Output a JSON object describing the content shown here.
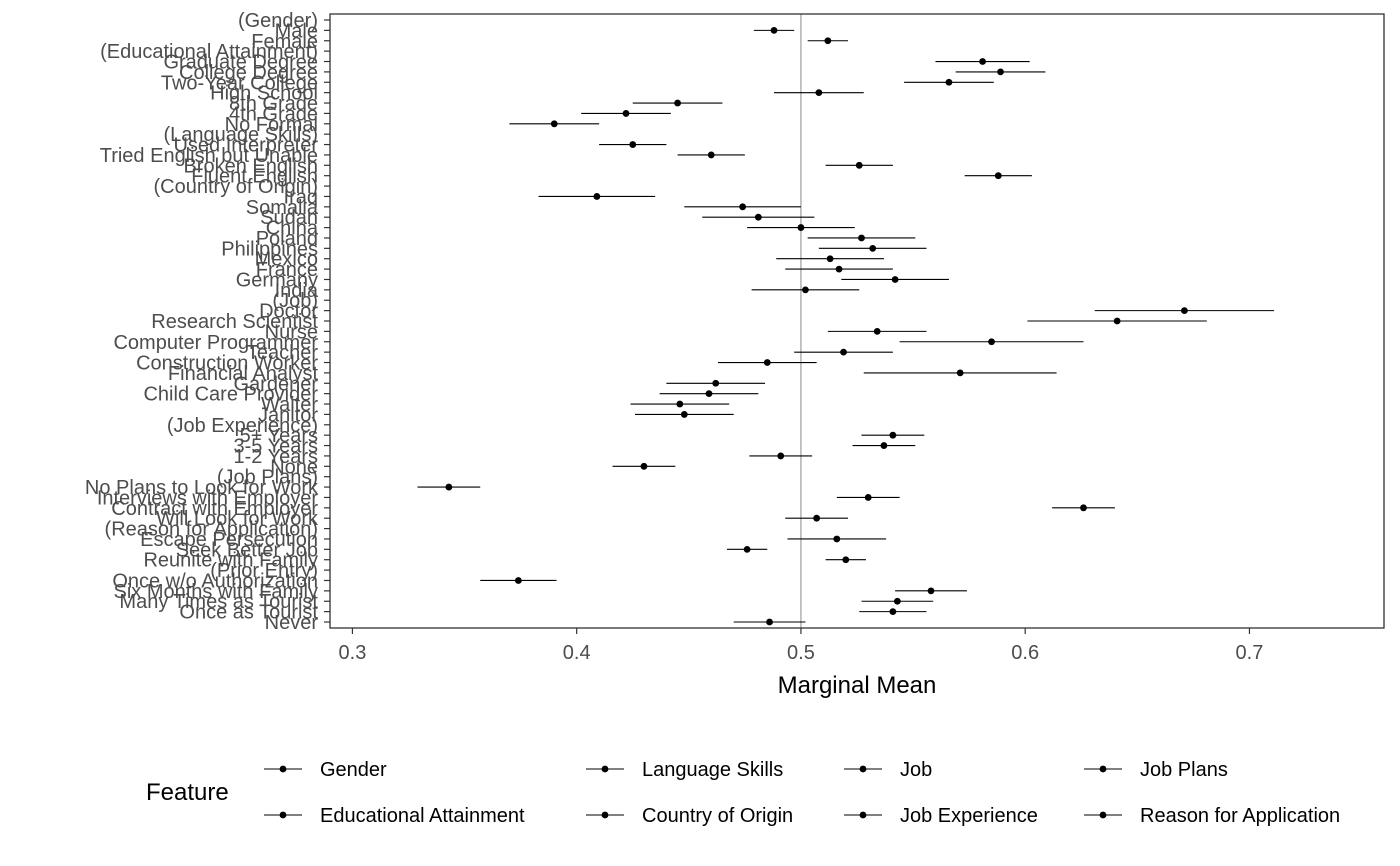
{
  "chart_data": {
    "type": "scatter",
    "title": "",
    "xlabel": "Marginal Mean",
    "ylabel": "",
    "xlim": [
      0.29,
      0.76
    ],
    "x_ticks": [
      "0.3",
      "0.4",
      "0.5",
      "0.6",
      "0.7"
    ],
    "reference_line": 0.5,
    "grid": false,
    "legend": {
      "title": "Feature",
      "position": "bottom",
      "entries": [
        "Gender",
        "Educational Attainment",
        "Language Skills",
        "Country of Origin",
        "Job",
        "Job Experience",
        "Job Plans",
        "Reason for Application"
      ]
    },
    "points": [
      {
        "label": "(Gender)",
        "feature": "Gender",
        "header": true
      },
      {
        "label": "Male",
        "feature": "Gender",
        "estimate": 0.488,
        "lower": 0.479,
        "upper": 0.497
      },
      {
        "label": "Female",
        "feature": "Gender",
        "estimate": 0.512,
        "lower": 0.503,
        "upper": 0.521
      },
      {
        "label": "(Educational Attainment)",
        "feature": "Educational Attainment",
        "header": true
      },
      {
        "label": "Graduate Degree",
        "feature": "Educational Attainment",
        "estimate": 0.581,
        "lower": 0.56,
        "upper": 0.602
      },
      {
        "label": "College Degree",
        "feature": "Educational Attainment",
        "estimate": 0.589,
        "lower": 0.569,
        "upper": 0.609
      },
      {
        "label": "Two-Year College",
        "feature": "Educational Attainment",
        "estimate": 0.566,
        "lower": 0.546,
        "upper": 0.586
      },
      {
        "label": "High School",
        "feature": "Educational Attainment",
        "estimate": 0.508,
        "lower": 0.488,
        "upper": 0.528
      },
      {
        "label": "8th Grade",
        "feature": "Educational Attainment",
        "estimate": 0.445,
        "lower": 0.425,
        "upper": 0.465
      },
      {
        "label": "4th Grade",
        "feature": "Educational Attainment",
        "estimate": 0.422,
        "lower": 0.402,
        "upper": 0.442
      },
      {
        "label": "No Formal",
        "feature": "Educational Attainment",
        "estimate": 0.39,
        "lower": 0.37,
        "upper": 0.41
      },
      {
        "label": "(Language Skills)",
        "feature": "Language Skills",
        "header": true
      },
      {
        "label": "Used Interpreter",
        "feature": "Language Skills",
        "estimate": 0.425,
        "lower": 0.41,
        "upper": 0.44
      },
      {
        "label": "Tried English but Unable",
        "feature": "Language Skills",
        "estimate": 0.46,
        "lower": 0.445,
        "upper": 0.475
      },
      {
        "label": "Broken English",
        "feature": "Language Skills",
        "estimate": 0.526,
        "lower": 0.511,
        "upper": 0.541
      },
      {
        "label": "Fluent English",
        "feature": "Language Skills",
        "estimate": 0.588,
        "lower": 0.573,
        "upper": 0.603
      },
      {
        "label": "(Country of Origin)",
        "feature": "Country of Origin",
        "header": true
      },
      {
        "label": "Iraq",
        "feature": "Country of Origin",
        "estimate": 0.409,
        "lower": 0.383,
        "upper": 0.435
      },
      {
        "label": "Somalia",
        "feature": "Country of Origin",
        "estimate": 0.474,
        "lower": 0.448,
        "upper": 0.5
      },
      {
        "label": "Sudan",
        "feature": "Country of Origin",
        "estimate": 0.481,
        "lower": 0.456,
        "upper": 0.506
      },
      {
        "label": "China",
        "feature": "Country of Origin",
        "estimate": 0.5,
        "lower": 0.476,
        "upper": 0.524
      },
      {
        "label": "Poland",
        "feature": "Country of Origin",
        "estimate": 0.527,
        "lower": 0.503,
        "upper": 0.551
      },
      {
        "label": "Philippines",
        "feature": "Country of Origin",
        "estimate": 0.532,
        "lower": 0.508,
        "upper": 0.556
      },
      {
        "label": "Mexico",
        "feature": "Country of Origin",
        "estimate": 0.513,
        "lower": 0.489,
        "upper": 0.537
      },
      {
        "label": "France",
        "feature": "Country of Origin",
        "estimate": 0.517,
        "lower": 0.493,
        "upper": 0.541
      },
      {
        "label": "Germany",
        "feature": "Country of Origin",
        "estimate": 0.542,
        "lower": 0.518,
        "upper": 0.566
      },
      {
        "label": "India",
        "feature": "Country of Origin",
        "estimate": 0.502,
        "lower": 0.478,
        "upper": 0.526
      },
      {
        "label": "(Job)",
        "feature": "Job",
        "header": true
      },
      {
        "label": "Doctor",
        "feature": "Job",
        "estimate": 0.671,
        "lower": 0.631,
        "upper": 0.711
      },
      {
        "label": "Research Scientist",
        "feature": "Job",
        "estimate": 0.641,
        "lower": 0.601,
        "upper": 0.681
      },
      {
        "label": "Nurse",
        "feature": "Job",
        "estimate": 0.534,
        "lower": 0.512,
        "upper": 0.556
      },
      {
        "label": "Computer Programmer",
        "feature": "Job",
        "estimate": 0.585,
        "lower": 0.544,
        "upper": 0.626
      },
      {
        "label": "Teacher",
        "feature": "Job",
        "estimate": 0.519,
        "lower": 0.497,
        "upper": 0.541
      },
      {
        "label": "Construction Worker",
        "feature": "Job",
        "estimate": 0.485,
        "lower": 0.463,
        "upper": 0.507
      },
      {
        "label": "Financial Analyst",
        "feature": "Job",
        "estimate": 0.571,
        "lower": 0.528,
        "upper": 0.614
      },
      {
        "label": "Gardener",
        "feature": "Job",
        "estimate": 0.462,
        "lower": 0.44,
        "upper": 0.484
      },
      {
        "label": "Child Care Provider",
        "feature": "Job",
        "estimate": 0.459,
        "lower": 0.437,
        "upper": 0.481
      },
      {
        "label": "Waiter",
        "feature": "Job",
        "estimate": 0.446,
        "lower": 0.424,
        "upper": 0.468
      },
      {
        "label": "Janitor",
        "feature": "Job",
        "estimate": 0.448,
        "lower": 0.426,
        "upper": 0.47
      },
      {
        "label": "(Job Experience)",
        "feature": "Job Experience",
        "header": true
      },
      {
        "label": "5+ Years",
        "feature": "Job Experience",
        "estimate": 0.541,
        "lower": 0.527,
        "upper": 0.555
      },
      {
        "label": "3-5 Years",
        "feature": "Job Experience",
        "estimate": 0.537,
        "lower": 0.523,
        "upper": 0.551
      },
      {
        "label": "1-2 Years",
        "feature": "Job Experience",
        "estimate": 0.491,
        "lower": 0.477,
        "upper": 0.505
      },
      {
        "label": "None",
        "feature": "Job Experience",
        "estimate": 0.43,
        "lower": 0.416,
        "upper": 0.444
      },
      {
        "label": "(Job Plans)",
        "feature": "Job Plans",
        "header": true
      },
      {
        "label": "No Plans to Look for Work",
        "feature": "Job Plans",
        "estimate": 0.343,
        "lower": 0.329,
        "upper": 0.357
      },
      {
        "label": "Interviews with Employer",
        "feature": "Job Plans",
        "estimate": 0.53,
        "lower": 0.516,
        "upper": 0.544
      },
      {
        "label": "Contract with Employer",
        "feature": "Job Plans",
        "estimate": 0.626,
        "lower": 0.612,
        "upper": 0.64
      },
      {
        "label": "Will Look for Work",
        "feature": "Job Plans",
        "estimate": 0.507,
        "lower": 0.493,
        "upper": 0.521
      },
      {
        "label": "(Reason for Application)",
        "feature": "Reason for Application",
        "header": true
      },
      {
        "label": "Escape Persecution",
        "feature": "Reason for Application",
        "estimate": 0.516,
        "lower": 0.494,
        "upper": 0.538
      },
      {
        "label": "Seek Better Job",
        "feature": "Reason for Application",
        "estimate": 0.476,
        "lower": 0.467,
        "upper": 0.485
      },
      {
        "label": "Reunite with Family",
        "feature": "Reason for Application",
        "estimate": 0.52,
        "lower": 0.511,
        "upper": 0.529
      },
      {
        "label": "(Prior Entry)",
        "feature": "Prior Entry",
        "header": true
      },
      {
        "label": "Once w/o Authorization",
        "feature": "Prior Entry",
        "estimate": 0.374,
        "lower": 0.357,
        "upper": 0.391
      },
      {
        "label": "Six Months with Family",
        "feature": "Prior Entry",
        "estimate": 0.558,
        "lower": 0.542,
        "upper": 0.574
      },
      {
        "label": "Many Times as Tourist",
        "feature": "Prior Entry",
        "estimate": 0.543,
        "lower": 0.527,
        "upper": 0.559
      },
      {
        "label": "Once as Tourist",
        "feature": "Prior Entry",
        "estimate": 0.541,
        "lower": 0.526,
        "upper": 0.556
      },
      {
        "label": "Never",
        "feature": "Prior Entry",
        "estimate": 0.486,
        "lower": 0.47,
        "upper": 0.502
      }
    ]
  }
}
